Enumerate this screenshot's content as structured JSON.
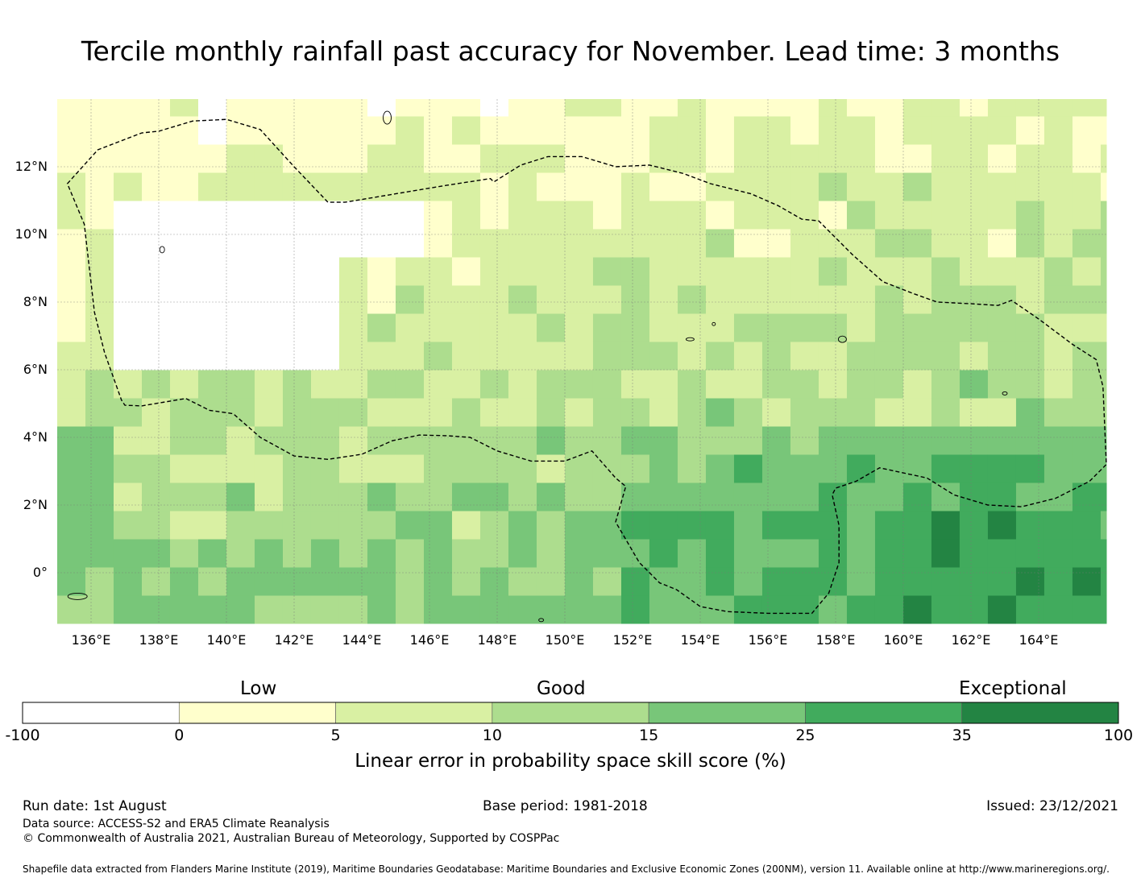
{
  "title": "Tercile monthly rainfall past accuracy for November. Lead time: 3 months",
  "map": {
    "lon_range": [
      135,
      166
    ],
    "lat_range": [
      -1.5,
      14
    ],
    "lon_ticks": [
      "136°E",
      "138°E",
      "140°E",
      "142°E",
      "144°E",
      "146°E",
      "148°E",
      "150°E",
      "152°E",
      "154°E",
      "156°E",
      "158°E",
      "160°E",
      "162°E",
      "164°E"
    ],
    "lat_ticks": [
      "12°N",
      "10°N",
      "8°N",
      "6°N",
      "4°N",
      "2°N",
      "0°"
    ],
    "grid": true,
    "eez_boundary": "dashed-black"
  },
  "chart_data": {
    "type": "heatmap",
    "title": "Tercile monthly rainfall past accuracy for November. Lead time: 3 months",
    "xlabel": "",
    "ylabel": "",
    "x_range": [
      135,
      166
    ],
    "y_range": [
      -1.5,
      14
    ],
    "value_label": "Linear error in probability space skill score (%)",
    "bins": [
      -100,
      0,
      5,
      10,
      15,
      25,
      35,
      100
    ],
    "bin_colors": [
      "#ffffff",
      "#ffffcc",
      "#d9f0a3",
      "#addd8e",
      "#78c679",
      "#41ab5d",
      "#238443"
    ]
  },
  "colorbar": {
    "categories": [
      "Low",
      "Good",
      "Exceptional"
    ],
    "ticks": [
      "-100",
      "0",
      "5",
      "10",
      "15",
      "25",
      "35",
      "100"
    ],
    "colors": [
      "#ffffff",
      "#ffffcc",
      "#d9f0a3",
      "#addd8e",
      "#78c679",
      "#41ab5d",
      "#238443"
    ],
    "label": "Linear error in probability space skill score (%)"
  },
  "footer": {
    "run_date": "Run date: 1st August",
    "base_period": "Base period: 1981-2018",
    "issued": "Issued: 23/12/2021",
    "data_source": "Data source: ACCESS-S2 and ERA5 Climate Reanalysis",
    "copyright": "© Commonwealth of Australia 2021, Australian Bureau of Meteorology, Supported by COSPPac",
    "shapefile": "Shapefile data extracted from Flanders Marine Institute (2019), Maritime Boundaries Geodatabase: Maritime Boundaries and Exclusive Economic Zones (200NM), version 11. Available online at http://www.marineregions.org/."
  }
}
